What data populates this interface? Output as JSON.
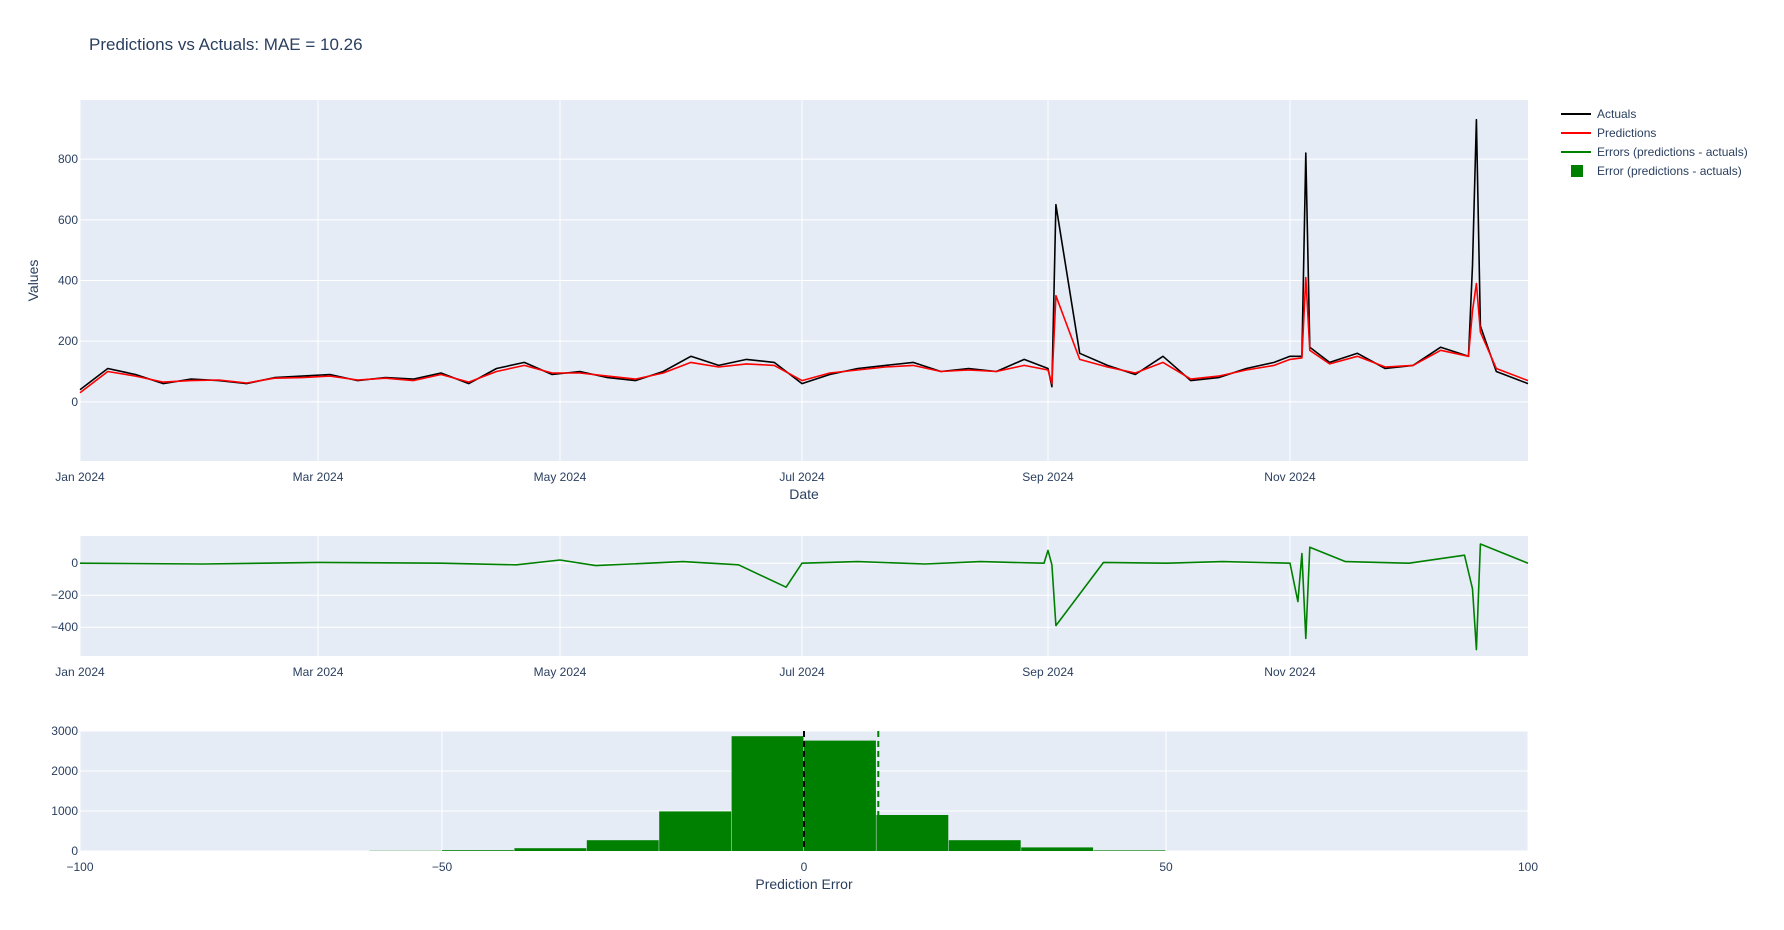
{
  "title": "Predictions vs Actuals: MAE = 10.26",
  "colors": {
    "plot_bg": "#e5ecf6",
    "grid": "#ffffff",
    "text": "#2a3f5f",
    "actuals": "#000000",
    "predictions": "#ff0000",
    "errors": "#008000",
    "zero_line": "#000000"
  },
  "legend": {
    "placement": "top-right, outside plot",
    "items": [
      {
        "label": "Actuals",
        "symbol": "line",
        "color": "#000000"
      },
      {
        "label": "Predictions",
        "symbol": "line",
        "color": "#ff0000"
      },
      {
        "label": "Errors (predictions - actuals)",
        "symbol": "line",
        "color": "#008000"
      },
      {
        "label": "Error (predictions - actuals)",
        "symbol": "square",
        "color": "#008000"
      }
    ]
  },
  "chart_data": [
    {
      "type": "line",
      "xlabel": "Date",
      "ylabel": "Values",
      "xlim": [
        "2024-01-01",
        "2024-12-31"
      ],
      "x_ticks": [
        {
          "value": "2024-01-01",
          "label": "Jan 2024"
        },
        {
          "value": "2024-03-01",
          "label": "Mar 2024"
        },
        {
          "value": "2024-05-01",
          "label": "May 2024"
        },
        {
          "value": "2024-07-01",
          "label": "Jul 2024"
        },
        {
          "value": "2024-09-01",
          "label": "Sep 2024"
        },
        {
          "value": "2024-11-01",
          "label": "Nov 2024"
        }
      ],
      "ylim": [
        -195,
        995
      ],
      "y_ticks": [
        0,
        200,
        400,
        600,
        800
      ],
      "grid": true,
      "series": [
        {
          "name": "Actuals",
          "color": "#000000",
          "x": [
            "2024-01-01",
            "2024-01-08",
            "2024-01-15",
            "2024-01-22",
            "2024-01-29",
            "2024-02-05",
            "2024-02-12",
            "2024-02-19",
            "2024-02-26",
            "2024-03-04",
            "2024-03-11",
            "2024-03-18",
            "2024-03-25",
            "2024-04-01",
            "2024-04-08",
            "2024-04-15",
            "2024-04-22",
            "2024-04-29",
            "2024-05-06",
            "2024-05-13",
            "2024-05-20",
            "2024-05-27",
            "2024-06-03",
            "2024-06-10",
            "2024-06-17",
            "2024-06-24",
            "2024-07-01",
            "2024-07-08",
            "2024-07-15",
            "2024-07-22",
            "2024-07-29",
            "2024-08-05",
            "2024-08-12",
            "2024-08-19",
            "2024-08-26",
            "2024-09-01",
            "2024-09-02",
            "2024-09-03",
            "2024-09-09",
            "2024-09-16",
            "2024-09-23",
            "2024-09-30",
            "2024-10-07",
            "2024-10-14",
            "2024-10-21",
            "2024-10-28",
            "2024-11-01",
            "2024-11-04",
            "2024-11-05",
            "2024-11-06",
            "2024-11-11",
            "2024-11-18",
            "2024-11-25",
            "2024-12-02",
            "2024-12-09",
            "2024-12-16",
            "2024-12-17",
            "2024-12-18",
            "2024-12-19",
            "2024-12-23",
            "2024-12-31"
          ],
          "y": [
            40,
            110,
            90,
            60,
            75,
            70,
            60,
            80,
            85,
            90,
            70,
            80,
            75,
            95,
            60,
            110,
            130,
            90,
            100,
            80,
            70,
            100,
            150,
            120,
            140,
            130,
            60,
            90,
            110,
            120,
            130,
            100,
            110,
            100,
            140,
            110,
            50,
            650,
            160,
            120,
            90,
            150,
            70,
            80,
            110,
            130,
            150,
            150,
            820,
            180,
            130,
            160,
            110,
            120,
            180,
            150,
            450,
            930,
            250,
            100,
            60
          ],
          "y_sample_points": 61
        },
        {
          "name": "Predictions",
          "color": "#ff0000",
          "x": [
            "2024-01-01",
            "2024-01-08",
            "2024-01-15",
            "2024-01-22",
            "2024-01-29",
            "2024-02-05",
            "2024-02-12",
            "2024-02-19",
            "2024-02-26",
            "2024-03-04",
            "2024-03-11",
            "2024-03-18",
            "2024-03-25",
            "2024-04-01",
            "2024-04-08",
            "2024-04-15",
            "2024-04-22",
            "2024-04-29",
            "2024-05-06",
            "2024-05-13",
            "2024-05-20",
            "2024-05-27",
            "2024-06-03",
            "2024-06-10",
            "2024-06-17",
            "2024-06-24",
            "2024-07-01",
            "2024-07-08",
            "2024-07-15",
            "2024-07-22",
            "2024-07-29",
            "2024-08-05",
            "2024-08-12",
            "2024-08-19",
            "2024-08-26",
            "2024-09-01",
            "2024-09-02",
            "2024-09-03",
            "2024-09-09",
            "2024-09-16",
            "2024-09-23",
            "2024-09-30",
            "2024-10-07",
            "2024-10-14",
            "2024-10-21",
            "2024-10-28",
            "2024-11-01",
            "2024-11-04",
            "2024-11-05",
            "2024-11-06",
            "2024-11-11",
            "2024-11-18",
            "2024-11-25",
            "2024-12-02",
            "2024-12-09",
            "2024-12-16",
            "2024-12-17",
            "2024-12-18",
            "2024-12-19",
            "2024-12-23",
            "2024-12-31"
          ],
          "y": [
            30,
            100,
            85,
            65,
            70,
            72,
            62,
            78,
            80,
            85,
            72,
            78,
            70,
            90,
            65,
            100,
            120,
            95,
            95,
            85,
            75,
            95,
            130,
            115,
            125,
            120,
            70,
            95,
            105,
            115,
            120,
            100,
            105,
            100,
            120,
            105,
            60,
            350,
            140,
            115,
            95,
            130,
            75,
            85,
            105,
            120,
            140,
            145,
            410,
            170,
            125,
            150,
            115,
            120,
            170,
            150,
            300,
            390,
            230,
            110,
            70
          ]
        }
      ]
    },
    {
      "type": "line",
      "xlim": [
        "2024-01-01",
        "2024-12-31"
      ],
      "x_ticks": [
        {
          "value": "2024-01-01",
          "label": "Jan 2024"
        },
        {
          "value": "2024-03-01",
          "label": "Mar 2024"
        },
        {
          "value": "2024-05-01",
          "label": "May 2024"
        },
        {
          "value": "2024-07-01",
          "label": "Jul 2024"
        },
        {
          "value": "2024-09-01",
          "label": "Sep 2024"
        },
        {
          "value": "2024-11-01",
          "label": "Nov 2024"
        }
      ],
      "ylim": [
        -580,
        170
      ],
      "y_ticks": [
        0,
        -200,
        -400
      ],
      "y_tick_labels": [
        "0",
        "−200",
        "−400"
      ],
      "grid": true,
      "series": [
        {
          "name": "Errors (predictions - actuals)",
          "color": "#008000",
          "x": [
            "2024-01-01",
            "2024-02-01",
            "2024-03-01",
            "2024-04-01",
            "2024-04-20",
            "2024-05-01",
            "2024-05-10",
            "2024-06-01",
            "2024-06-15",
            "2024-06-27",
            "2024-07-01",
            "2024-07-15",
            "2024-08-01",
            "2024-08-15",
            "2024-08-31",
            "2024-09-01",
            "2024-09-02",
            "2024-09-03",
            "2024-09-15",
            "2024-10-01",
            "2024-10-15",
            "2024-11-01",
            "2024-11-03",
            "2024-11-04",
            "2024-11-05",
            "2024-11-06",
            "2024-11-15",
            "2024-12-01",
            "2024-12-15",
            "2024-12-17",
            "2024-12-18",
            "2024-12-19",
            "2024-12-31"
          ],
          "y": [
            0,
            -5,
            5,
            0,
            -10,
            20,
            -15,
            10,
            -10,
            -150,
            0,
            10,
            -5,
            10,
            0,
            80,
            -10,
            -390,
            5,
            0,
            10,
            0,
            -240,
            60,
            -470,
            100,
            10,
            0,
            50,
            -160,
            -540,
            120,
            0
          ]
        }
      ]
    },
    {
      "type": "bar",
      "xlabel": "Prediction Error",
      "xlim": [
        -100,
        100
      ],
      "x_ticks": [
        -100,
        -50,
        0,
        50,
        100
      ],
      "x_tick_labels": [
        "−100",
        "−50",
        "0",
        "50",
        "100"
      ],
      "ylim": [
        0,
        3000
      ],
      "y_ticks": [
        0,
        1000,
        2000,
        3000
      ],
      "grid": true,
      "bin_width": 10,
      "bins": [
        {
          "start": -60,
          "end": -50,
          "value": 5
        },
        {
          "start": -50,
          "end": -40,
          "value": 20
        },
        {
          "start": -40,
          "end": -30,
          "value": 70
        },
        {
          "start": -30,
          "end": -20,
          "value": 270
        },
        {
          "start": -20,
          "end": -10,
          "value": 990
        },
        {
          "start": -10,
          "end": 0,
          "value": 2870
        },
        {
          "start": 0,
          "end": 10,
          "value": 2760
        },
        {
          "start": 10,
          "end": 20,
          "value": 900
        },
        {
          "start": 20,
          "end": 30,
          "value": 270
        },
        {
          "start": 30,
          "end": 40,
          "value": 90
        },
        {
          "start": 40,
          "end": 50,
          "value": 15
        }
      ],
      "series": [
        {
          "name": "Error (predictions - actuals)",
          "color": "#008000"
        }
      ],
      "vlines": [
        {
          "x": 0,
          "color": "#000000",
          "style": "dashed"
        },
        {
          "x": 10.26,
          "color": "#008000",
          "style": "dashed"
        }
      ]
    }
  ]
}
